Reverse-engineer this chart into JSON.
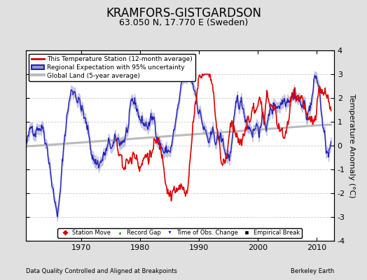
{
  "title": "KRAMFORS-GISTGARDSON",
  "subtitle": "63.050 N, 17.770 E (Sweden)",
  "ylabel": "Temperature Anomaly (°C)",
  "xlabel_left": "Data Quality Controlled and Aligned at Breakpoints",
  "xlabel_right": "Berkeley Earth",
  "ylim": [
    -4,
    4
  ],
  "xlim": [
    1960.5,
    2013
  ],
  "xticks": [
    1970,
    1980,
    1990,
    2000,
    2010
  ],
  "yticks": [
    -4,
    -3,
    -2,
    -1,
    0,
    1,
    2,
    3,
    4
  ],
  "background_color": "#e0e0e0",
  "plot_bg_color": "#ffffff",
  "grid_color": "#cccccc",
  "legend_entries": [
    "This Temperature Station (12-month average)",
    "Regional Expectation with 95% uncertainty",
    "Global Land (5-year average)"
  ],
  "station_color": "#dd0000",
  "regional_color": "#2222bb",
  "regional_fill_color": "#9999cc",
  "global_color": "#bbbbbb",
  "station_lw": 1.2,
  "regional_lw": 1.0,
  "global_lw": 2.2,
  "title_fontsize": 12,
  "subtitle_fontsize": 9,
  "tick_fontsize": 8,
  "label_fontsize": 8,
  "seed": 42
}
